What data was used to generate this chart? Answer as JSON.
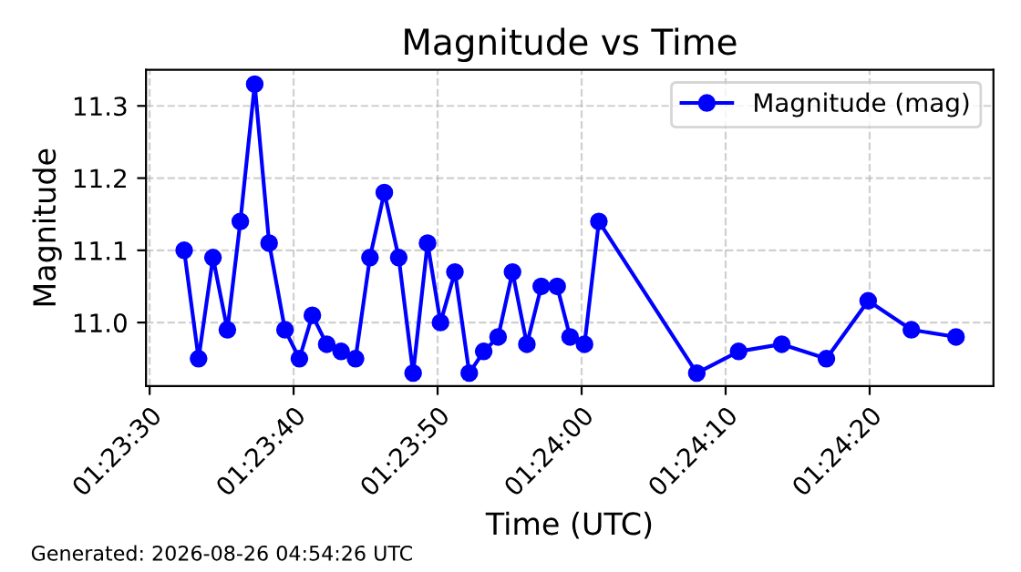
{
  "chart_data": {
    "type": "line",
    "title": "Magnitude vs Time",
    "xlabel": "Time (UTC)",
    "ylabel": "Magnitude",
    "x": [
      1.392333,
      1.392611,
      1.392889,
      1.393167,
      1.393417,
      1.393694,
      1.393972,
      1.394278,
      1.394556,
      1.394806,
      1.395083,
      1.395361,
      1.395639,
      1.395917,
      1.396194,
      1.396472,
      1.39675,
      1.397028,
      1.397278,
      1.397556,
      1.397833,
      1.398111,
      1.398389,
      1.398667,
      1.398944,
      1.399222,
      1.399528,
      1.399778,
      1.400056,
      1.400333,
      1.402222,
      1.403028,
      1.403861,
      1.404722,
      1.405528,
      1.406361,
      1.407222
    ],
    "series": [
      {
        "name": "Magnitude (mag)",
        "color": "#0000ff",
        "values": [
          11.1,
          10.95,
          11.09,
          10.99,
          11.14,
          11.33,
          11.11,
          10.99,
          10.95,
          11.01,
          10.97,
          10.96,
          10.95,
          11.09,
          11.18,
          11.09,
          10.93,
          11.11,
          11.0,
          11.07,
          10.93,
          10.96,
          10.98,
          11.07,
          10.97,
          11.05,
          11.05,
          10.98,
          10.97,
          11.14,
          10.93,
          10.96,
          10.97,
          10.95,
          11.03,
          10.99,
          10.98
        ]
      }
    ],
    "xlim": [
      1.391597,
      1.407944
    ],
    "xticks": [
      {
        "value": 1.391667,
        "label": "01:23:30"
      },
      {
        "value": 1.394444,
        "label": "01:23:40"
      },
      {
        "value": 1.397222,
        "label": "01:23:50"
      },
      {
        "value": 1.4,
        "label": "01:24:00"
      },
      {
        "value": 1.402778,
        "label": "01:24:10"
      },
      {
        "value": 1.405556,
        "label": "01:24:20"
      }
    ],
    "ylim": [
      10.912,
      11.35
    ],
    "yticks": [
      {
        "value": 11.0,
        "label": "11.0"
      },
      11.1,
      11.2,
      11.3
    ],
    "grid": true,
    "legend": "top right",
    "marker": "circle",
    "line_style": "solid",
    "annotations": [
      "Generated: 2026-08-26 04:54:26 UTC"
    ]
  }
}
